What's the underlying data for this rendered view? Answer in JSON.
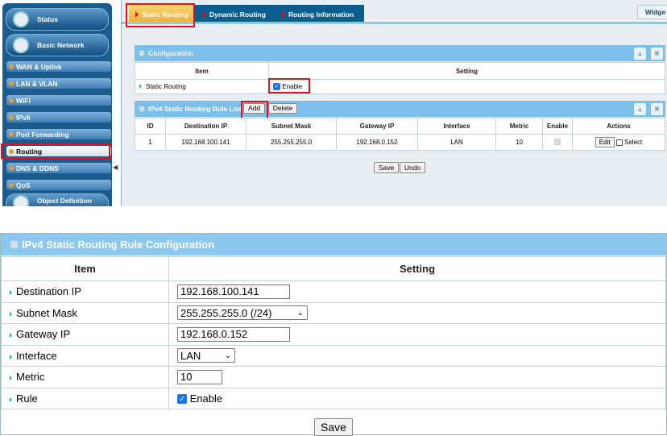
{
  "sidebar": {
    "items": [
      {
        "label": "Status"
      },
      {
        "label": "Basic Network"
      },
      {
        "label": "WAN & Uplink"
      },
      {
        "label": "LAN & VLAN"
      },
      {
        "label": "WiFi"
      },
      {
        "label": "IPv6"
      },
      {
        "label": "Port Forwarding"
      },
      {
        "label": "Routing",
        "selected": true
      },
      {
        "label": "DNS & DDNS"
      },
      {
        "label": "QoS"
      },
      {
        "label": "Object Definition"
      }
    ]
  },
  "tabs": [
    {
      "label": "Static Routing",
      "active": true
    },
    {
      "label": "Dynamic Routing"
    },
    {
      "label": "Routing Information"
    }
  ],
  "widget_button": "Widge",
  "config": {
    "title": "Configuration",
    "col_item": "Item",
    "col_setting": "Setting",
    "row_label": "Static Routing",
    "enable_label": "Enable",
    "enabled": true
  },
  "rule_list": {
    "title": "IPv4 Static Routing Rule List",
    "add": "Add",
    "delete": "Delete",
    "columns": [
      "ID",
      "Destination IP",
      "Subnet Mask",
      "Gateway IP",
      "Interface",
      "Metric",
      "Enable",
      "Actions"
    ],
    "rows": [
      {
        "id": "1",
        "dest": "192.168.100.141",
        "mask": "255.255.255.0",
        "gw": "192.168.0.152",
        "iface": "LAN",
        "metric": "10",
        "edit": "Edit",
        "select": "Select"
      }
    ]
  },
  "save": "Save",
  "undo": "Undo",
  "rule_config": {
    "title": "IPv4 Static Routing Rule Configuration",
    "col_item": "Item",
    "col_setting": "Setting",
    "dest_label": "Destination IP",
    "dest_value": "192.168.100.141",
    "mask_label": "Subnet Mask",
    "mask_value": "255.255.255.0 (/24)",
    "gw_label": "Gateway IP",
    "gw_value": "192.168.0.152",
    "iface_label": "Interface",
    "iface_value": "LAN",
    "metric_label": "Metric",
    "metric_value": "10",
    "rule_label": "Rule",
    "rule_enable": "Enable",
    "save": "Save"
  },
  "colors": {
    "sidebar": "#1b5c8c",
    "panel_header": "#7cbfea",
    "highlight": "#e0101c",
    "tab_active": "#f5c24a"
  }
}
